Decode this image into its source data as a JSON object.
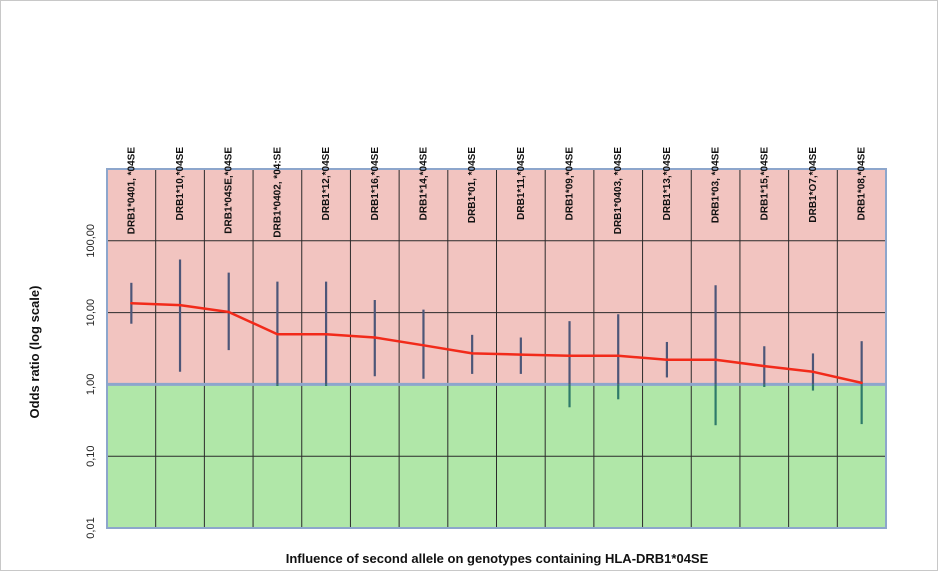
{
  "chart_data": {
    "type": "line",
    "title": "",
    "xlabel": "Influence of second allele on genotypes containing HLA-DRB1*04SE",
    "ylabel": "Odds ratio (log scale)",
    "y_scale": "log",
    "ylim": [
      0.01,
      1000
    ],
    "y_ticks": [
      0.01,
      0.1,
      1,
      10,
      100
    ],
    "y_tick_labels": [
      "0,01",
      "0,10",
      "1,00",
      "10,00",
      "100,00"
    ],
    "reference_line": 1,
    "grid": true,
    "categories": [
      "DRB1*0401, *04SE",
      "DRB1*10,*04SE",
      "DRB1*04SE,*04SE",
      "DRB1*0402, *04:SE",
      "DRB1*12,*04SE",
      "DRB1*16,*04SE",
      "DRB1*14,*04SE",
      "DRB1*01, *04SE",
      "DRB1*11,*04SE",
      "DRB1*09,*04SE",
      "DRB1*0403, *04SE",
      "DRB1*13,*04SE",
      "DRB1*03, *04SE",
      "DRB1*15,*04SE",
      "DRB1*O7,*04SE",
      "DRB1*08,*04SE"
    ],
    "series": [
      {
        "values": [
          13.5,
          12.7,
          10.2,
          5.0,
          5.0,
          4.5,
          3.5,
          2.7,
          2.6,
          2.5,
          2.5,
          2.2,
          2.2,
          1.8,
          1.5,
          1.05
        ],
        "lower": [
          7.0,
          1.5,
          3.0,
          0.95,
          0.95,
          1.3,
          1.2,
          1.4,
          1.4,
          0.48,
          0.62,
          1.25,
          0.27,
          0.92,
          0.82,
          0.28
        ],
        "upper": [
          26.0,
          55.0,
          36.0,
          27.0,
          27.0,
          15.0,
          11.0,
          4.9,
          4.5,
          7.6,
          9.5,
          3.9,
          24.0,
          3.4,
          2.7,
          4.0
        ]
      }
    ],
    "colors": {
      "upper_region": "#f2c4c0",
      "lower_region": "#b0e7a8",
      "grid": "#2b2b2b",
      "plot_border": "#8da6cc",
      "line": "#f22a1a",
      "error_bar": "#4d5678",
      "error_bar_low": "#2e7a6a"
    }
  }
}
